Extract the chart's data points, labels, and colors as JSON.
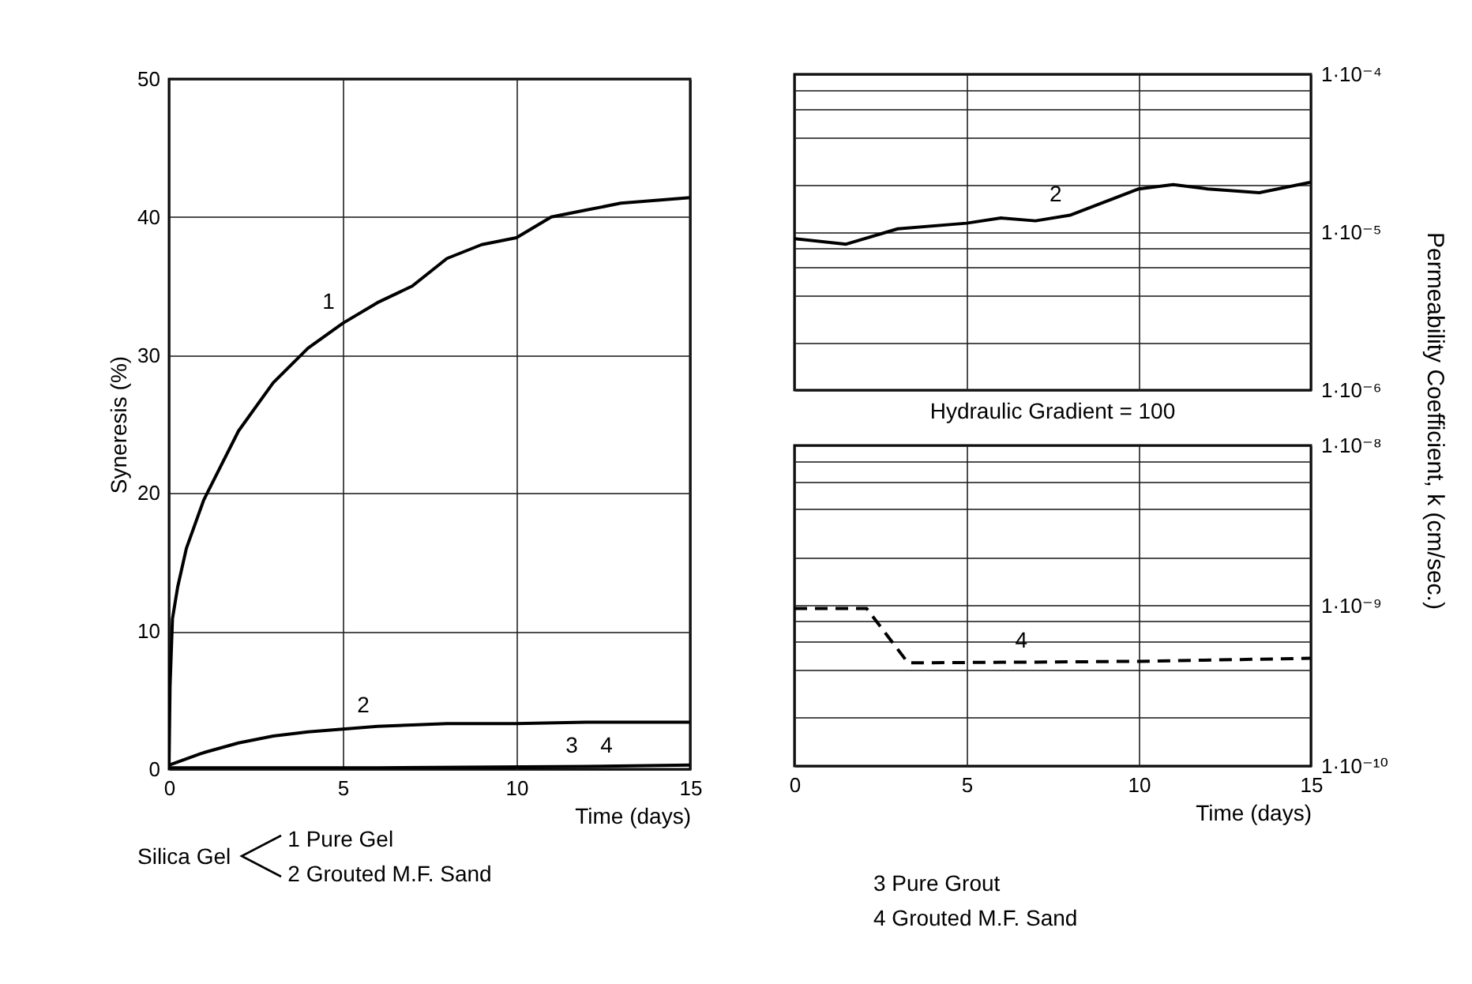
{
  "chart_data": [
    {
      "type": "line",
      "xlabel": "Time (days)",
      "ylabel": "Syneresis (%)",
      "xlim": [
        0,
        15
      ],
      "xticks": [
        0,
        5,
        10,
        15
      ],
      "ylim": [
        0,
        50
      ],
      "yticks": [
        0,
        10,
        20,
        30,
        40,
        50
      ],
      "grid": true,
      "annotations": [
        "Silica Gel",
        "1 Pure Gel",
        "2 Grouted M.F. Sand",
        {
          "text": "4",
          "x": 13,
          "y": 0.15
        }
      ],
      "series": [
        {
          "name": "1",
          "color": "#000000",
          "x": [
            0,
            0.03,
            0.1,
            0.25,
            0.5,
            1,
            1.5,
            2,
            3,
            4,
            5,
            6,
            7,
            8,
            9,
            10,
            11,
            12,
            13,
            14,
            15
          ],
          "values": [
            0,
            6,
            10.9,
            13.2,
            16,
            19.5,
            22,
            24.5,
            28,
            30.5,
            32.3,
            33.8,
            35,
            37,
            38,
            38.5,
            40,
            40.5,
            41,
            41.2,
            41.4
          ]
        },
        {
          "name": "2",
          "color": "#000000",
          "x": [
            0,
            1,
            2,
            3,
            4,
            5,
            6,
            7,
            8,
            10,
            12,
            15
          ],
          "values": [
            0.3,
            1.2,
            1.9,
            2.4,
            2.7,
            2.9,
            3.1,
            3.2,
            3.3,
            3.3,
            3.4,
            3.4
          ]
        },
        {
          "name": "3",
          "color": "#000000",
          "x": [
            0,
            6,
            12,
            15
          ],
          "values": [
            0.1,
            0.1,
            0.2,
            0.3
          ]
        }
      ]
    },
    {
      "type": "line",
      "y2label": "Permeability Coefficient, k (cm/sec.)",
      "xlim": [
        0,
        15
      ],
      "xticks": [
        0,
        5,
        10,
        15
      ],
      "y2lim": [
        1e-06,
        0.0001
      ],
      "y2ticks": [
        {
          "value": 1e-06,
          "label": "1·10⁻⁶"
        },
        {
          "value": 2e-06,
          "label": null
        },
        {
          "value": 4e-06,
          "label": null
        },
        {
          "value": 6e-06,
          "label": null
        },
        {
          "value": 8e-06,
          "label": null
        },
        {
          "value": 1e-05,
          "label": "1·10⁻⁵"
        },
        {
          "value": 2e-05,
          "label": null
        },
        {
          "value": 4e-05,
          "label": null
        },
        {
          "value": 6e-05,
          "label": null
        },
        {
          "value": 8e-05,
          "label": null
        },
        {
          "value": 0.0001,
          "label": "1·10⁻⁴"
        }
      ],
      "log": "y2",
      "grid": true,
      "tick_labels": "y",
      "series": [
        {
          "name": "2",
          "color": "#000000",
          "axis": "y2",
          "x": [
            0,
            1.5,
            3,
            5,
            6,
            7,
            8,
            9,
            10,
            11,
            12,
            13.5,
            15
          ],
          "values": [
            9.1e-06,
            8.4e-06,
            1.05e-05,
            1.14e-05,
            1.23e-05,
            1.18e-05,
            1.28e-05,
            1.55e-05,
            1.88e-05,
            2e-05,
            1.88e-05,
            1.78e-05,
            2.07e-05
          ]
        }
      ]
    },
    {
      "type": "line",
      "title": "Hydraulic Gradient = 100",
      "xlabel": "Time (days)",
      "xlim": [
        0,
        15
      ],
      "xticks": [
        0,
        5,
        10,
        15
      ],
      "y2lim": [
        1e-10,
        1e-08
      ],
      "y2ticks": [
        {
          "value": 1e-10,
          "label": "1·10⁻¹⁰"
        },
        {
          "value": 2e-10,
          "label": null
        },
        {
          "value": 4e-10,
          "label": null
        },
        {
          "value": 6e-10,
          "label": null
        },
        {
          "value": 8e-10,
          "label": null
        },
        {
          "value": 1e-09,
          "label": "1·10⁻⁹"
        },
        {
          "value": 2e-09,
          "label": null
        },
        {
          "value": 4e-09,
          "label": null
        },
        {
          "value": 6e-09,
          "label": null
        },
        {
          "value": 8e-09,
          "label": null
        },
        {
          "value": 1e-08,
          "label": "1·10⁻⁸"
        }
      ],
      "log": "y2",
      "grid": true,
      "line_style": "dashed",
      "annotations": [
        "3 Pure Grout",
        "4 Grouted M.F. Sand"
      ],
      "series": [
        {
          "name": "4",
          "color": "#000000",
          "axis": "y2",
          "x": [
            0,
            2.1,
            3.3,
            7,
            10,
            15
          ],
          "values": [
            9.6e-10,
            9.6e-10,
            4.4e-10,
            4.45e-10,
            4.5e-10,
            4.7e-10
          ]
        }
      ]
    }
  ]
}
